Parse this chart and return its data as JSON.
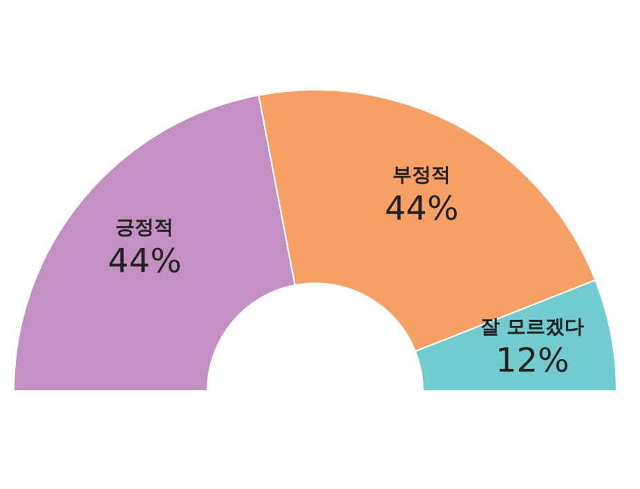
{
  "chart_data": {
    "type": "donut",
    "categories": [
      "긍정적",
      "부정적",
      "잘 모르겠다"
    ],
    "values": [
      44,
      44,
      12
    ],
    "value_labels": [
      "44%",
      "44%",
      "12%"
    ],
    "colors": [
      "#c490c4",
      "#f7a066",
      "#72cccf"
    ]
  }
}
